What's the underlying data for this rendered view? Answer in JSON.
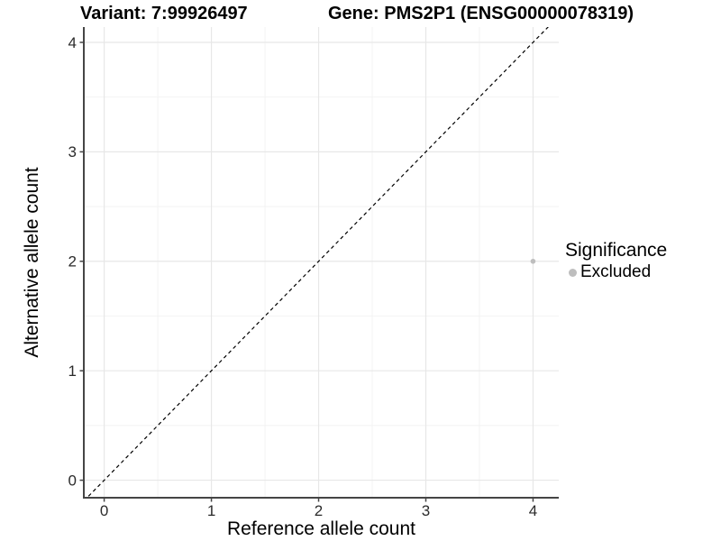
{
  "colors": {
    "background": "#ffffff",
    "grid_major": "#e7e7e7",
    "grid_minor": "#f2f2f2",
    "axis_line": "#454545",
    "tick_label": "#2b2b2b",
    "title_text": "#000000",
    "point": "#bebebe",
    "reference_line": "#000000"
  },
  "chart_data": {
    "type": "scatter",
    "titles": [
      "Variant: 7:99926497",
      "Gene: PMS2P1 (ENSG00000078319)"
    ],
    "xlabel": "Reference allele count",
    "ylabel": "Alternative allele count",
    "xlim": [
      -0.19,
      4.24
    ],
    "ylim": [
      -0.16,
      4.14
    ],
    "ticks": {
      "x": [
        0,
        1,
        2,
        3,
        4
      ],
      "y": [
        0,
        1,
        2,
        3,
        4
      ]
    },
    "grid": {
      "major": true,
      "minor": true
    },
    "series": [
      {
        "name": "Excluded",
        "color": "#bebebe",
        "marker_size": 2.8,
        "points": [
          {
            "x": 4,
            "y": 2
          }
        ]
      }
    ],
    "reference_line": {
      "slope": 1,
      "intercept": 0,
      "style": "dashed",
      "color": "#000000"
    },
    "legend": {
      "title": "Significance",
      "position": "right",
      "items": [
        {
          "label": "Excluded",
          "color": "#bebebe"
        }
      ]
    }
  }
}
